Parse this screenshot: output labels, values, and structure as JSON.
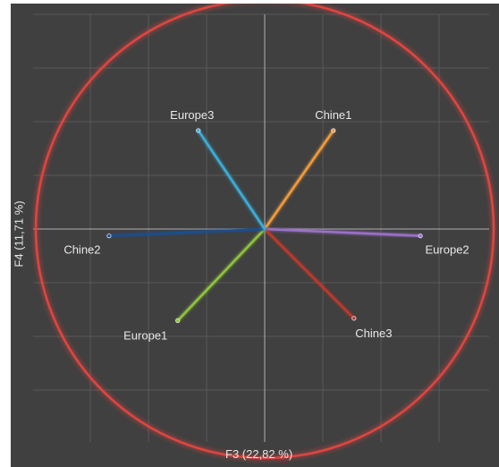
{
  "chart_data": {
    "type": "scatter",
    "subtype": "correlation-circle",
    "xlabel": "F3 (22,82 %)",
    "ylabel": "F4 (11,71 %)",
    "xlim": [
      -1.12,
      0.98
    ],
    "ylim": [
      -1.0,
      1.0
    ],
    "grid": true,
    "circle_radius": 1,
    "colors": {
      "background": "#404040",
      "grid": "#595959",
      "axis": "#b0b0b0",
      "circle": "#e0453f",
      "label": "#e8e8e8"
    },
    "series": [
      {
        "name": "Chine1",
        "x": 0.3,
        "y": 0.43,
        "color": "#f29b3a"
      },
      {
        "name": "Europe2",
        "x": 0.68,
        "y": -0.03,
        "color": "#9b6fc8"
      },
      {
        "name": "Chine3",
        "x": 0.39,
        "y": -0.39,
        "color": "#c0392b"
      },
      {
        "name": "Europe1",
        "x": -0.38,
        "y": -0.4,
        "color": "#8fc43a"
      },
      {
        "name": "Chine2",
        "x": -0.68,
        "y": -0.03,
        "color": "#1f4e8c"
      },
      {
        "name": "Europe3",
        "x": -0.29,
        "y": 0.43,
        "color": "#3aaed8"
      }
    ]
  }
}
